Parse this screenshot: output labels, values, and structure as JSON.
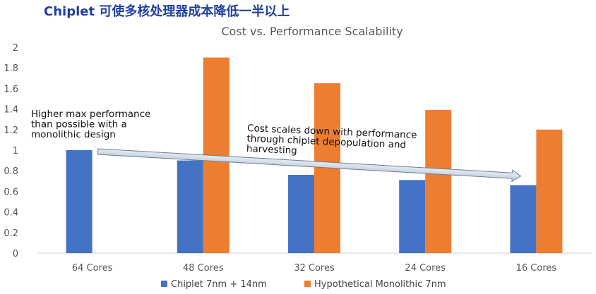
{
  "headline": "Chiplet 可使多核处理器成本降低一半以上",
  "chart_data": {
    "type": "bar",
    "title": "Cost vs. Performance Scalability",
    "xlabel": "",
    "ylabel": "",
    "ylim": [
      0,
      2
    ],
    "yticks": [
      "0",
      "0.2",
      "0.4",
      "0.6",
      "0.8",
      "1",
      "1.2",
      "1.4",
      "1.6",
      "1.8",
      "2"
    ],
    "categories": [
      "64 Cores",
      "48 Cores",
      "32 Cores",
      "24 Cores",
      "16 Cores"
    ],
    "series": [
      {
        "name": "Chiplet 7nm + 14nm",
        "color": "#4472c4",
        "values": [
          1.0,
          0.9,
          0.76,
          0.71,
          0.66
        ]
      },
      {
        "name": "Hypothetical Monolithic 7nm",
        "color": "#ed7d31",
        "values": [
          null,
          1.9,
          1.65,
          1.39,
          1.2
        ]
      }
    ],
    "grid": false,
    "legend": "bottom",
    "annotations": [
      {
        "lines": [
          "Higher max performance",
          "than possible with a",
          "monolithic design"
        ]
      },
      {
        "lines": [
          "Cost scales down with performance",
          "through chiplet depopulation and",
          "harvesting"
        ]
      }
    ],
    "trend_arrow": {
      "from": {
        "category": "64 Cores",
        "value": 1.0
      },
      "to": {
        "category": "16 Cores",
        "value": 0.72
      }
    }
  }
}
